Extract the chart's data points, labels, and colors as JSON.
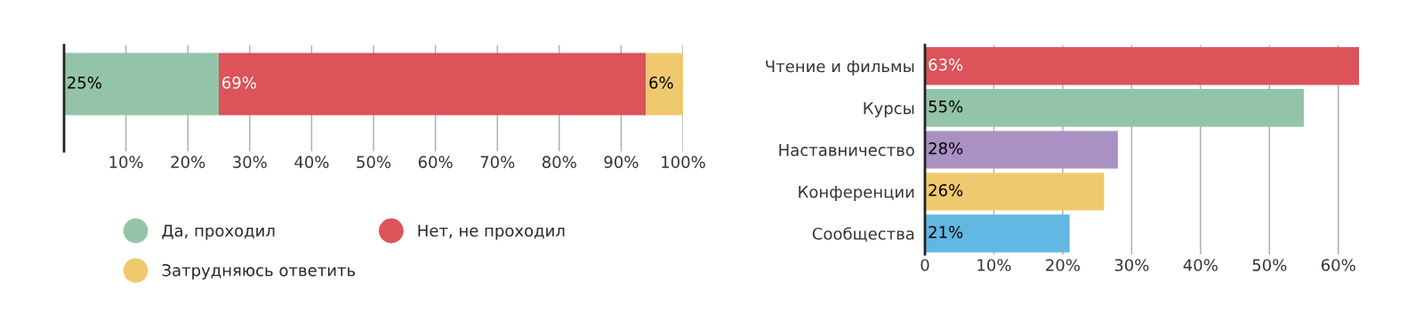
{
  "chart_data": [
    {
      "type": "bar",
      "orientation": "horizontal",
      "stacked": true,
      "categories": [
        null
      ],
      "series": [
        {
          "name": "Да, проходил",
          "color": "#93c4a8",
          "values": [
            25
          ]
        },
        {
          "name": "Нет, не проходил",
          "color": "#dc535a",
          "values": [
            69
          ]
        },
        {
          "name": "Затрудняюсь ответить",
          "color": "#f0c96e",
          "values": [
            6
          ]
        }
      ],
      "xlim": [
        0,
        100
      ],
      "xticks": [
        {
          "value": 10,
          "label": "10%"
        },
        {
          "value": 20,
          "label": "20%"
        },
        {
          "value": 30,
          "label": "30%"
        },
        {
          "value": 40,
          "label": "40%"
        },
        {
          "value": 50,
          "label": "50%"
        },
        {
          "value": 60,
          "label": "60%"
        },
        {
          "value": 70,
          "label": "70%"
        },
        {
          "value": 80,
          "label": "80%"
        },
        {
          "value": 90,
          "label": "90%"
        },
        {
          "value": 100,
          "label": "100%"
        }
      ],
      "value_labels": [
        "25%",
        "69%",
        "6%"
      ],
      "grid": "x",
      "legend": "bottom",
      "tick_labels": "x"
    },
    {
      "type": "bar",
      "orientation": "horizontal",
      "categories": [
        "Чтение и фильмы",
        "Курсы",
        "Наставничество",
        "Конференции",
        "Сообщества"
      ],
      "values": [
        63,
        55,
        28,
        26,
        21
      ],
      "colors": [
        "#dc535a",
        "#93c4a8",
        "#aa91c3",
        "#f0c96e",
        "#62b7e3"
      ],
      "value_labels": [
        "63%",
        "55%",
        "28%",
        "26%",
        "21%"
      ],
      "xlim": [
        0,
        63
      ],
      "xticks": [
        0,
        {
          "value": 10,
          "label": "10%"
        },
        {
          "value": 20,
          "label": "20%"
        },
        {
          "value": 30,
          "label": "30%"
        },
        {
          "value": 40,
          "label": "40%"
        },
        {
          "value": 50,
          "label": "50%"
        },
        {
          "value": 60,
          "label": "60%"
        }
      ],
      "grid": "x"
    }
  ]
}
